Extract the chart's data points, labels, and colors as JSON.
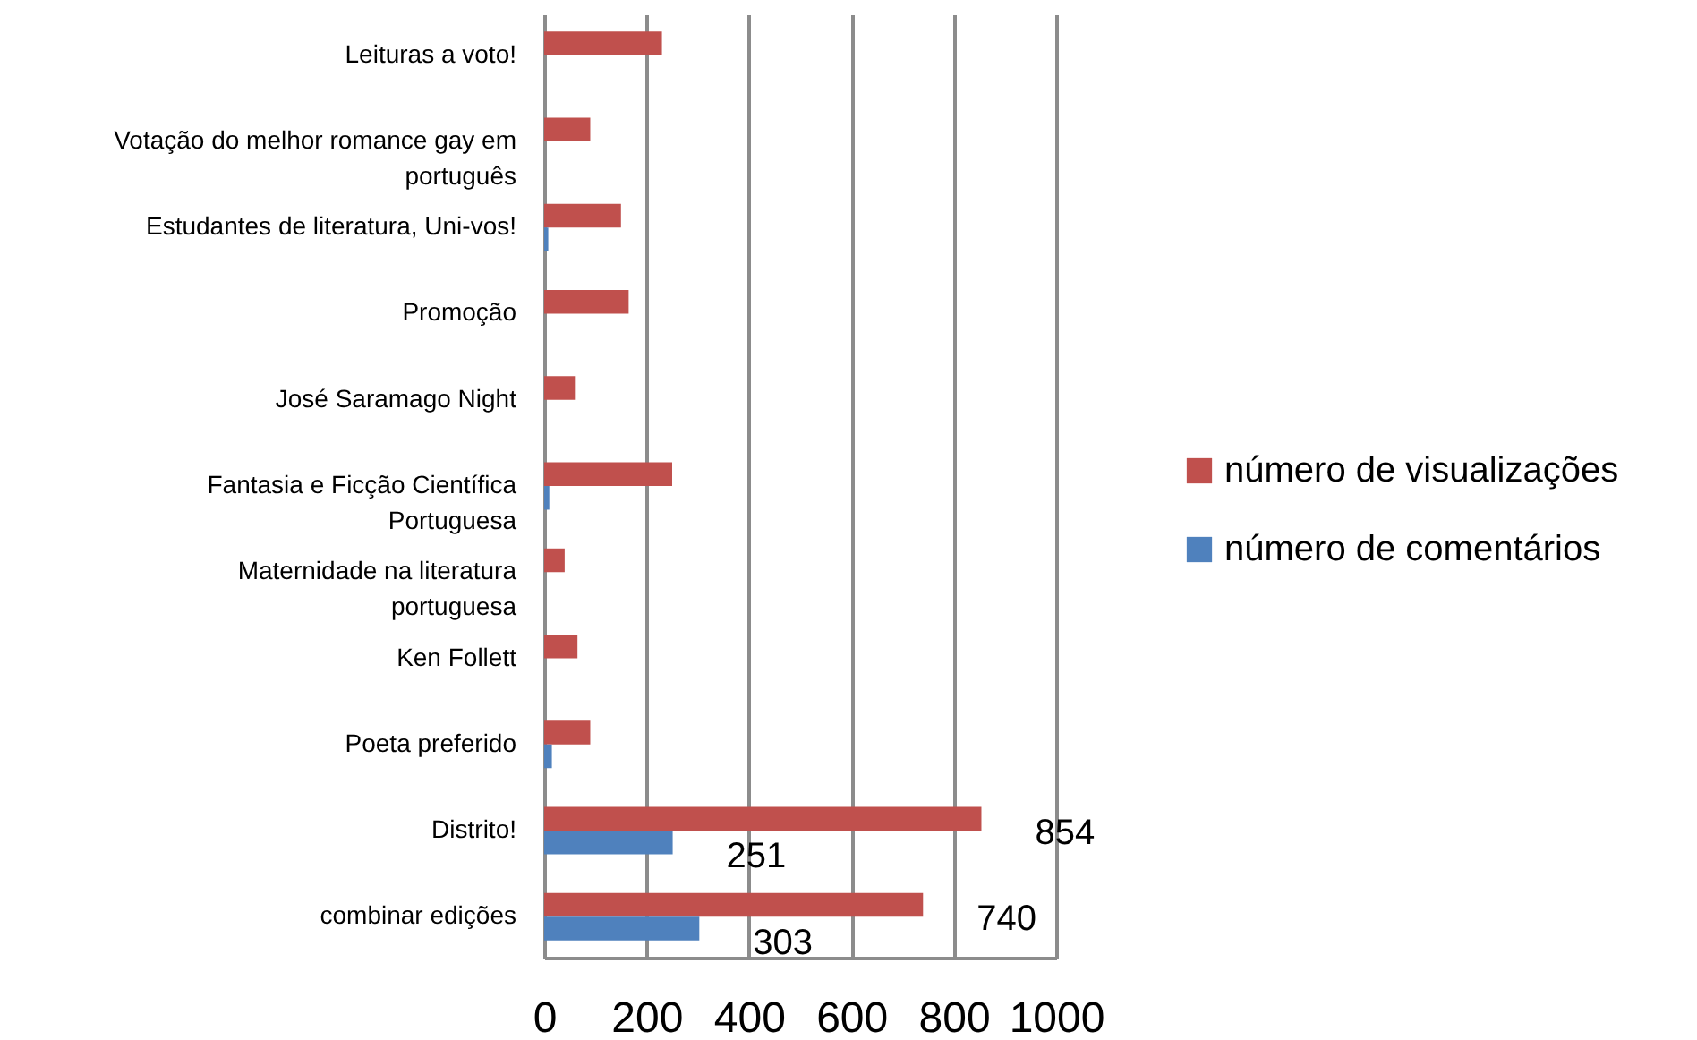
{
  "chart_data": {
    "type": "bar",
    "orientation": "horizontal",
    "categories": [
      "Leituras a voto!",
      "Votação do melhor romance gay em português",
      "Estudantes de literatura, Uni-vos!",
      "Promoção",
      "José Saramago Night",
      "Fantasia e Ficção Científica Portuguesa",
      "Maternidade na literatura portuguesa",
      "Ken Follett",
      "Poeta preferido",
      "Distrito!",
      "combinar edições"
    ],
    "series": [
      {
        "name": "número de visualizações",
        "color": "#c0504d",
        "values": [
          230,
          90,
          150,
          165,
          60,
          250,
          40,
          65,
          90,
          854,
          740
        ],
        "value_labels": [
          null,
          null,
          null,
          null,
          null,
          null,
          null,
          null,
          null,
          "854",
          "740"
        ]
      },
      {
        "name": "número de comentários",
        "color": "#4f81bd",
        "values": [
          0,
          0,
          8,
          0,
          0,
          10,
          0,
          0,
          15,
          251,
          303
        ],
        "value_labels": [
          null,
          null,
          null,
          null,
          null,
          null,
          null,
          null,
          null,
          "251",
          "303"
        ]
      }
    ],
    "xlim": [
      0,
      1000
    ],
    "xticks": [
      0,
      200,
      400,
      600,
      800,
      1000
    ],
    "grid": "x",
    "legend": "right"
  }
}
